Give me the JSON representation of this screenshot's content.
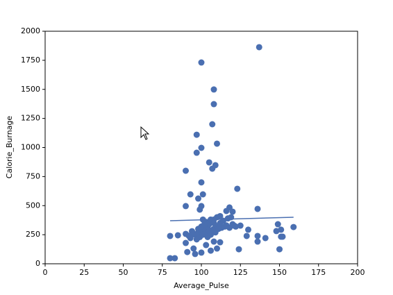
{
  "chart_data": {
    "type": "scatter",
    "x_label": "Average_Pulse",
    "y_label": "Calorie_Burnage",
    "xlim": [
      0,
      200
    ],
    "xticks": [
      0,
      25,
      50,
      75,
      100,
      125,
      150,
      175,
      200
    ],
    "ylim": [
      0,
      2000
    ],
    "yticks": [
      0,
      250,
      500,
      750,
      1000,
      1250,
      1500,
      1750,
      2000
    ],
    "series": [
      {
        "type": "scatter",
        "color": "#4a6fb1",
        "x": [
          137,
          100,
          108,
          108,
          107,
          97,
          110,
          100,
          97,
          105,
          109,
          107,
          90,
          100,
          123,
          93,
          101,
          98,
          90,
          100,
          99,
          118,
          116,
          120,
          136,
          149,
          151,
          159,
          130,
          125,
          121,
          90,
          85,
          80,
          93,
          90,
          95,
          91,
          96,
          80,
          83,
          100,
          106,
          110,
          108,
          112,
          103,
          124,
          129,
          136,
          136,
          141,
          150,
          151,
          152,
          148,
          96,
          98,
          100,
          102,
          104,
          105,
          103,
          106,
          108,
          110,
          112,
          114,
          116,
          118,
          99,
          101,
          103,
          105,
          107,
          109,
          111,
          113,
          115,
          100,
          102,
          97,
          95,
          104,
          106,
          108,
          110,
          117,
          120,
          122,
          119,
          112,
          108,
          101,
          98,
          94,
          92
        ],
        "values": [
          1863,
          1731,
          1499,
          1373,
          1200,
          1110,
          1033,
          997,
          955,
          872,
          848,
          818,
          800,
          700,
          645,
          597,
          597,
          561,
          496,
          496,
          466,
          484,
          454,
          448,
          472,
          340,
          293,
          316,
          293,
          328,
          328,
          257,
          245,
          239,
          221,
          179,
          131,
          101,
          84,
          48,
          48,
          96,
          113,
          131,
          191,
          185,
          161,
          125,
          239,
          239,
          191,
          221,
          125,
          233,
          233,
          281,
          250,
          270,
          280,
          300,
          320,
          340,
          360,
          380,
          300,
          320,
          350,
          370,
          330,
          310,
          230,
          250,
          260,
          280,
          290,
          270,
          300,
          310,
          320,
          320,
          340,
          210,
          260,
          230,
          250,
          350,
          400,
          390,
          340,
          320,
          400,
          410,
          380,
          380,
          300,
          280,
          240
        ]
      },
      {
        "type": "line",
        "color": "#4a6fb1",
        "x": [
          80,
          159
        ],
        "values": [
          370,
          400
        ]
      }
    ]
  }
}
